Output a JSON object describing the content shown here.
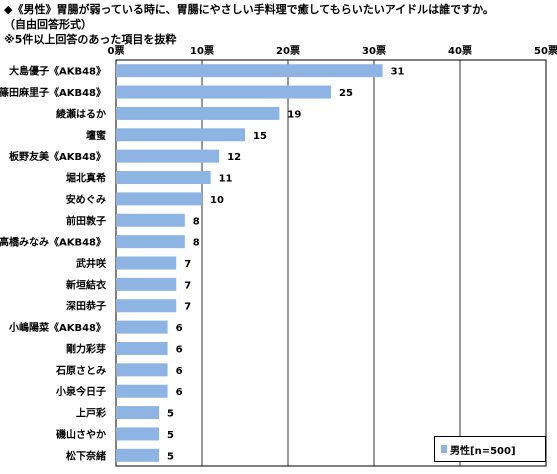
{
  "titles": [
    "◆《男性》胃腸が弱っている時に、胃腸にやさしい手料理で癒してもらいたいアイドルは誰ですか。",
    "（自由回答形式）",
    "※5件以上回答のあった項目を抜粋"
  ],
  "chart_data": {
    "type": "bar",
    "orientation": "horizontal",
    "categories": [
      "大島優子《AKB48》",
      "篠田麻里子《AKB48》",
      "綾瀬はるか",
      "壇蜜",
      "板野友美《AKB48》",
      "堀北真希",
      "安めぐみ",
      "前田敦子",
      "高橋みなみ《AKB48》",
      "武井咲",
      "新垣結衣",
      "深田恭子",
      "小嶋陽菜《AKB48》",
      "剛力彩芽",
      "石原さとみ",
      "小泉今日子",
      "上戸彩",
      "磯山さやか",
      "松下奈緒"
    ],
    "series": [
      {
        "name": "男性[n=500]",
        "values": [
          31,
          25,
          19,
          15,
          12,
          11,
          10,
          8,
          8,
          7,
          7,
          7,
          6,
          6,
          6,
          6,
          5,
          5,
          5
        ]
      }
    ],
    "xlim": [
      0,
      50
    ],
    "ticks": [
      0,
      10,
      20,
      30,
      40,
      50
    ],
    "tick_labels": [
      "0票",
      "10票",
      "20票",
      "30票",
      "40票",
      "50票"
    ],
    "grid": true,
    "legend_position": "bottom-right",
    "bar_color": "#8db4e3"
  }
}
